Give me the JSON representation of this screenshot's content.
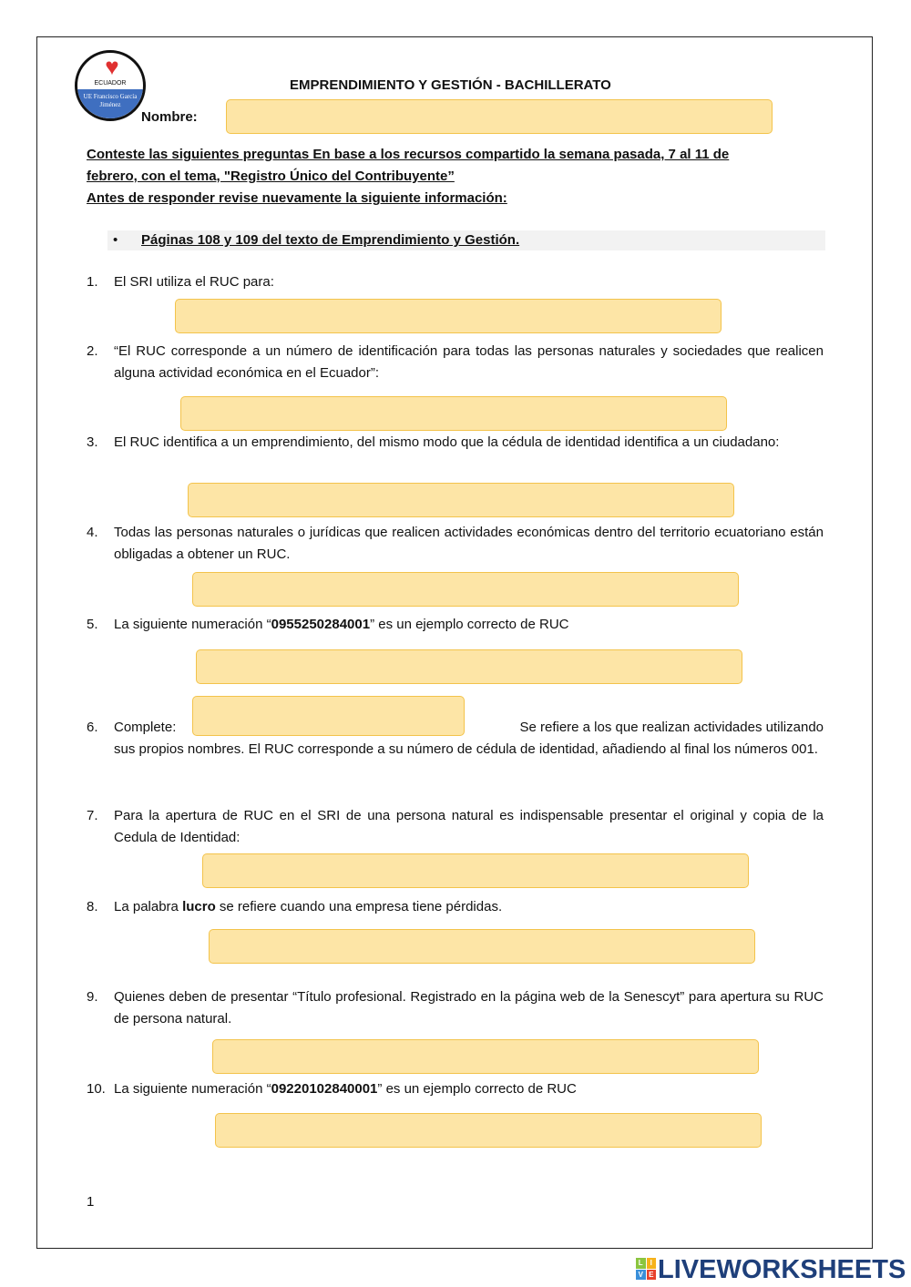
{
  "header": {
    "title": "EMPRENDIMIENTO Y GESTIÓN - BACHILLERATO",
    "name_label": "Nombre:"
  },
  "logo": {
    "top_text": "ECUADOR",
    "bottom_text": "UE Francisco García Jiménez"
  },
  "instructions": {
    "line1": "Conteste las siguientes preguntas En base a los recursos compartido la semana pasada, 7 al 11 de",
    "line2": "febrero, con el tema, \"Registro Único del Contribuyente”",
    "line3": "Antes de responder revise nuevamente la siguiente información:",
    "bullet": "Páginas 108 y 109 del texto de Emprendimiento y Gestión."
  },
  "questions": [
    {
      "n": "1.",
      "text": "El SRI utiliza el RUC para:"
    },
    {
      "n": "2.",
      "text": "“El RUC corresponde a un número de identificación para todas las personas naturales y sociedades que realicen alguna actividad económica en el Ecuador”:"
    },
    {
      "n": "3.",
      "text": "El RUC identifica a un emprendimiento, del mismo modo que la cédula de identidad identifica a un ciudadano:"
    },
    {
      "n": "4.",
      "text": "Todas las personas naturales o jurídicas que realicen actividades económicas dentro del territorio ecuatoriano están obligadas a obtener un RUC."
    },
    {
      "n": "5.",
      "pre": "La siguiente numeración “",
      "bold": "0955250284001",
      "post": "” es un ejemplo correcto de RUC"
    },
    {
      "n": "6.",
      "label": "Complete:",
      "after": "Se refiere a los que realizan actividades utilizando",
      "rest": "sus propios nombres. El RUC corresponde a su número de cédula de identidad, añadiendo al final los números 001."
    },
    {
      "n": "7.",
      "text": "Para la apertura de RUC en el SRI de una persona natural es indispensable presentar el original y copia de la Cedula de Identidad:"
    },
    {
      "n": "8.",
      "pre": "La palabra ",
      "bold": "lucro",
      "post": " se refiere cuando una empresa tiene pérdidas."
    },
    {
      "n": "9.",
      "text": "Quienes deben de presentar “Título profesional. Registrado en la página web de la Senescyt” para apertura su RUC de persona natural."
    },
    {
      "n": "10.",
      "pre": "La siguiente numeración “",
      "bold": "09220102840001",
      "post": "” es un ejemplo correcto de RUC"
    }
  ],
  "answers": {
    "nombre": "",
    "q1": "",
    "q2": "",
    "q3": "",
    "q4": "",
    "q5": "",
    "q6": "",
    "q7": "",
    "q8": "",
    "q9": "",
    "q10": ""
  },
  "footer": {
    "page_number": "1",
    "brand": "LIVEWORKSHEETS",
    "brand_icon_letters": [
      "L",
      "I",
      "V",
      "E"
    ]
  },
  "colors": {
    "answer_fill": "#fde5a6",
    "answer_border": "#f3c34b",
    "brand": "#1e3f7a"
  }
}
